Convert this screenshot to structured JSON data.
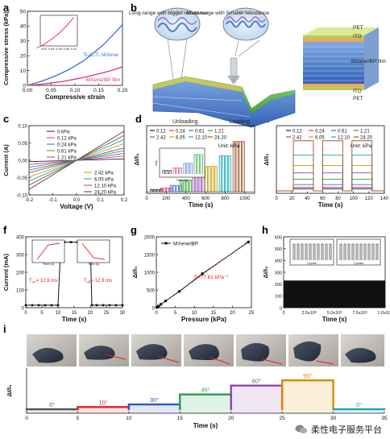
{
  "panel_labels": [
    "a",
    "b",
    "c",
    "d",
    "e",
    "f",
    "g",
    "h",
    "i"
  ],
  "panel_b": {
    "callout_left": "Long-range with bigger resistance",
    "callout_right": "Short-range with Smaller resistance",
    "state_left": "Unloading",
    "state_right": "Loading",
    "layers": [
      "PET",
      "ITO",
      "MXene/BP film",
      "ITO",
      "PET"
    ]
  },
  "panel_f": {
    "t_on": "T",
    "t_on_sub": "on",
    "t_on_val": "= 10.9 ms",
    "t_off": "T",
    "t_off_sub": "off",
    "t_off_val": "= 12.9 ms"
  },
  "panel_i": {
    "photos": 6
  },
  "watermark": "柔性电子服务平台",
  "chart_data": [
    {
      "panel": "a",
      "type": "line",
      "xlabel": "Compressive strain",
      "ylabel": "Compressive stress (kPa)",
      "xlim": [
        0.0,
        0.2
      ],
      "ylim": [
        0,
        50
      ],
      "xticks": [
        0.0,
        0.05,
        0.1,
        0.15,
        0.2
      ],
      "yticks": [
        0,
        10,
        20,
        30,
        40,
        50
      ],
      "series": [
        {
          "name": "Ti₃C₂Tₓ MXene",
          "color": "#3a6fd8",
          "x": [
            0,
            0.02,
            0.04,
            0.06,
            0.08,
            0.1,
            0.12,
            0.14,
            0.16,
            0.18,
            0.2
          ],
          "y": [
            0,
            1.8,
            4.0,
            6.5,
            9.5,
            13,
            17,
            22,
            27.5,
            34,
            41
          ]
        },
        {
          "name": "MXene/BP film",
          "color": "#e8336b",
          "x": [
            0,
            0.02,
            0.04,
            0.06,
            0.08,
            0.1,
            0.12,
            0.14,
            0.16,
            0.18,
            0.2
          ],
          "y": [
            0,
            0.5,
            1.2,
            2.0,
            3.0,
            4.2,
            5.5,
            7.0,
            8.6,
            10.4,
            12.5
          ]
        }
      ],
      "inset": {
        "xticks": [
          0.02,
          0.04,
          0.06,
          0.08,
          0.1
        ],
        "x": [
          0.01,
          0.1
        ],
        "y": [
          0.5,
          4.2
        ]
      }
    },
    {
      "panel": "c",
      "type": "line",
      "xlabel": "Voltage (V)",
      "ylabel": "Current (A)",
      "xlim": [
        -0.2,
        0.2
      ],
      "ylim": [
        -0.1,
        0.1
      ],
      "xticks": [
        -0.2,
        -0.1,
        0.0,
        0.1,
        0.2
      ],
      "yticks": [
        -0.1,
        -0.05,
        0.0,
        0.05,
        0.1
      ],
      "series": [
        {
          "name": "0 kPa",
          "color": "#222222",
          "slope": 0.02
        },
        {
          "name": "0.12 kPa",
          "color": "#e8336b",
          "slope": 0.06
        },
        {
          "name": "0.24 kPa",
          "color": "#3a6fd8",
          "slope": 0.1
        },
        {
          "name": "0.61 kPa",
          "color": "#2ca02c",
          "slope": 0.14
        },
        {
          "name": "1.21 kPa",
          "color": "#8e44ad",
          "slope": 0.18
        },
        {
          "name": "2.42 kPa",
          "color": "#c8a000",
          "slope": 0.24
        },
        {
          "name": "6.05 kPa",
          "color": "#16a9b6",
          "slope": 0.3
        },
        {
          "name": "12.10 kPa",
          "color": "#a0522d",
          "slope": 0.36
        },
        {
          "name": "24.20 kPa",
          "color": "#444444",
          "slope": 0.42
        }
      ]
    },
    {
      "panel": "d",
      "type": "line",
      "xlabel": "Time (s)",
      "ylabel": "ΔI/I₀",
      "xlim": [
        0,
        1100
      ],
      "xticks": [
        0,
        200,
        400,
        600,
        800,
        1000
      ],
      "legend_unit": "Unit: kPa",
      "series": [
        {
          "name": "0.12",
          "color": "#222222",
          "level": 0.04
        },
        {
          "name": "0.24",
          "color": "#e8336b",
          "level": 0.07
        },
        {
          "name": "0.61",
          "color": "#3a6fd8",
          "level": 0.12
        },
        {
          "name": "1.21",
          "color": "#2ca02c",
          "level": 0.22
        },
        {
          "name": "2.42",
          "color": "#8e44ad",
          "level": 0.34
        },
        {
          "name": "6.05",
          "color": "#c8a000",
          "level": 0.48
        },
        {
          "name": "12.10",
          "color": "#16a9b6",
          "level": 0.68
        },
        {
          "name": "24.20",
          "color": "#a0522d",
          "level": 0.95
        }
      ],
      "inset": {
        "xlabel": "Time (s)",
        "ylabel": "ΔI/I₀"
      }
    },
    {
      "panel": "e",
      "type": "line",
      "xlabel": "Time (s)",
      "ylabel": "ΔI/I₀",
      "xlim": [
        0,
        140
      ],
      "xticks": [
        0,
        20,
        40,
        60,
        80,
        100,
        120,
        140
      ],
      "legend_unit": "Unit: kPa",
      "series": [
        {
          "name": "0.12",
          "color": "#222222",
          "level": 0.04
        },
        {
          "name": "0.24",
          "color": "#e8336b",
          "level": 0.07
        },
        {
          "name": "0.61",
          "color": "#3a6fd8",
          "level": 0.12
        },
        {
          "name": "1.21",
          "color": "#2ca02c",
          "level": 0.22
        },
        {
          "name": "2.42",
          "color": "#8e44ad",
          "level": 0.34
        },
        {
          "name": "6.05",
          "color": "#c8a000",
          "level": 0.48
        },
        {
          "name": "12.10",
          "color": "#16a9b6",
          "level": 0.68
        },
        {
          "name": "24.20",
          "color": "#a0522d",
          "level": 0.95
        }
      ],
      "pulses": [
        [
          22,
          48
        ],
        [
          60,
          86
        ],
        [
          98,
          124
        ]
      ]
    },
    {
      "panel": "f",
      "type": "line",
      "xlabel": "Time (s)",
      "ylabel": "Current (mA)",
      "xlim": [
        0,
        30
      ],
      "ylim": [
        0,
        400
      ],
      "xticks": [
        0,
        5,
        10,
        15,
        20,
        25,
        30
      ],
      "yticks": [
        0,
        100,
        200,
        300,
        400
      ],
      "x": [
        0,
        2,
        4,
        6,
        8,
        10,
        10.9,
        12,
        14,
        16,
        18,
        19,
        20,
        20.5,
        22,
        24,
        26,
        28,
        30
      ],
      "y": [
        14,
        14,
        14,
        14,
        14,
        14,
        370,
        370,
        370,
        370,
        370,
        370,
        370,
        14,
        14,
        14,
        14,
        14,
        14
      ]
    },
    {
      "panel": "g",
      "type": "line",
      "xlabel": "Pressure (kPa)",
      "ylabel": "ΔI/I₀",
      "xlim": [
        0,
        25
      ],
      "ylim": [
        0,
        2000
      ],
      "xticks": [
        0,
        5,
        10,
        15,
        20,
        25
      ],
      "yticks": [
        0,
        500,
        1000,
        1500,
        2000
      ],
      "series": [
        {
          "name": "MXene/BP",
          "color": "#222222",
          "x": [
            0.12,
            0.24,
            0.61,
            1.21,
            2.42,
            6.05,
            12.1,
            24.2
          ],
          "y": [
            8,
            18,
            45,
            95,
            190,
            460,
            960,
            1850
          ]
        }
      ],
      "fit_label": "S=77.61 kPa⁻¹"
    },
    {
      "panel": "h",
      "type": "line",
      "xlabel": "Time (s)",
      "ylabel": "ΔI/I₀",
      "xlim": [
        0,
        10000
      ],
      "ylim": [
        0,
        600
      ],
      "xticks": [
        0,
        2500,
        5000,
        7500,
        10000
      ],
      "xticklabels": [
        "0",
        "2.5x10³",
        "5.0x10³",
        "7.5x10³",
        "1.0x10⁴"
      ],
      "yticks": [
        0,
        100,
        200,
        300,
        400,
        500,
        600
      ],
      "band": [
        0,
        230
      ],
      "insets": [
        {
          "xlabel": "Cycles"
        },
        {
          "xlabel": "Cycles"
        }
      ]
    },
    {
      "panel": "i",
      "type": "bar",
      "xlabel": "Time (s)",
      "ylabel": "ΔI/I₀",
      "xlim": [
        0,
        35
      ],
      "xticks": [
        0,
        5,
        10,
        15,
        20,
        25,
        30,
        35
      ],
      "segments": [
        {
          "label": "0°",
          "x0": 0,
          "x1": 5,
          "value": 0.02,
          "color": "#555555"
        },
        {
          "label": "10°",
          "x0": 5,
          "x1": 10,
          "value": 0.08,
          "color": "#e02424"
        },
        {
          "label": "30°",
          "x0": 10,
          "x1": 15,
          "value": 0.15,
          "color": "#2a57c9"
        },
        {
          "label": "45°",
          "x0": 15,
          "x1": 20,
          "value": 0.42,
          "color": "#22a049"
        },
        {
          "label": "60°",
          "x0": 20,
          "x1": 25,
          "value": 0.66,
          "color": "#8e44ad"
        },
        {
          "label": "90°",
          "x0": 25,
          "x1": 30,
          "value": 0.8,
          "color": "#d88b00"
        },
        {
          "label": "0°",
          "x0": 30,
          "x1": 35,
          "value": 0.02,
          "color": "#16a9b6"
        }
      ]
    }
  ]
}
